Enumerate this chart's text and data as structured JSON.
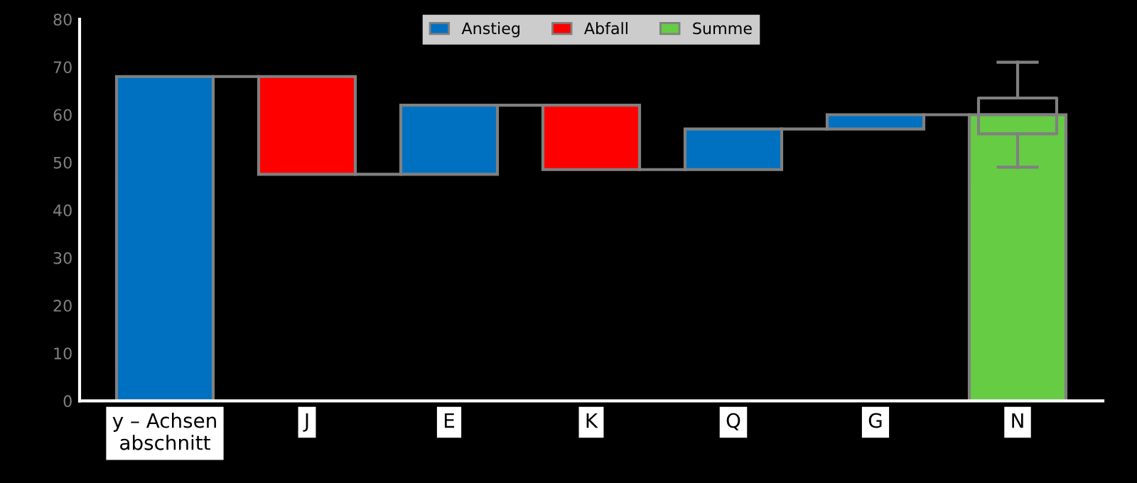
{
  "chart_data": {
    "type": "bar",
    "categories": [
      "y – Achsen\nabschnitt",
      "J",
      "E",
      "K",
      "Q",
      "G",
      "N"
    ],
    "series": [
      {
        "name": "Anstieg",
        "color": "#0070c0",
        "base": [
          0,
          null,
          47.5,
          null,
          48.5,
          57,
          null
        ],
        "values": [
          68,
          null,
          14.5,
          null,
          8.5,
          3,
          null
        ]
      },
      {
        "name": "Abfall",
        "color": "#ff0000",
        "base": [
          null,
          47.5,
          null,
          48.5,
          null,
          null,
          null
        ],
        "values": [
          null,
          20.5,
          null,
          13.5,
          null,
          null,
          null
        ]
      },
      {
        "name": "Summe",
        "color": "#66cc44",
        "values": [
          null,
          null,
          null,
          null,
          null,
          null,
          60
        ]
      },
      {
        "type": "box",
        "color": "#808080",
        "boxes": [
          null,
          null,
          null,
          null,
          null,
          null,
          {
            "low": 49,
            "q1": 56,
            "median": 60,
            "q3": 63.5,
            "high": 71
          }
        ]
      }
    ],
    "ylim": [
      0,
      80
    ],
    "yticks": [
      0,
      10,
      20,
      30,
      40,
      50,
      60,
      70,
      80
    ],
    "grid": false,
    "legend": "top"
  }
}
